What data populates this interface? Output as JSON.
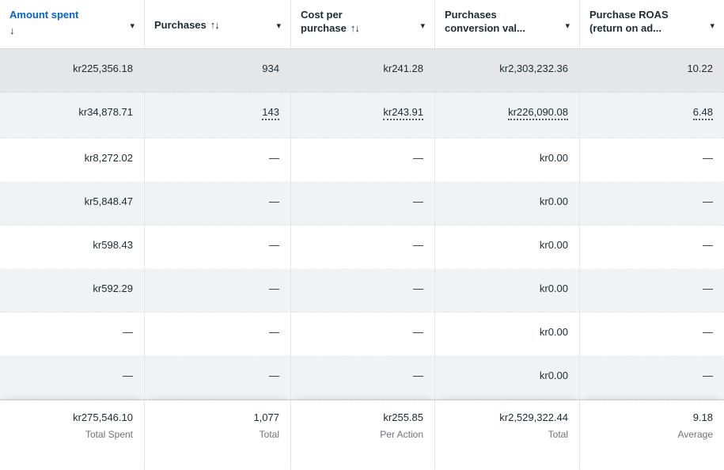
{
  "icons": {
    "caret_down": "▾",
    "sort_both": "↑↓",
    "sort_desc": "↓"
  },
  "colors": {
    "sorted_column_link": "#0064d1",
    "text_dark": "#1c2b33",
    "row_selected_bg": "#e4e6e8",
    "row_shaded_bg": "#f0f3f5",
    "footer_label_gray": "#6e737a"
  },
  "table": {
    "columns": [
      {
        "label": "Amount spent",
        "sorted": "descending"
      },
      {
        "label": "Purchases",
        "sortable": true
      },
      {
        "label": "Cost per purchase",
        "sortable": true
      },
      {
        "label": "Purchases conversion val..."
      },
      {
        "label": "Purchase ROAS (return on ad..."
      }
    ],
    "rows": [
      {
        "amount_spent": "kr225,356.18",
        "purchases": "934",
        "cost_per_purchase": "kr241.28",
        "conversion_value": "kr2,303,232.36",
        "roas": "10.22"
      },
      {
        "amount_spent": "kr34,878.71",
        "purchases": "143",
        "cost_per_purchase": "kr243.91",
        "conversion_value": "kr226,090.08",
        "roas": "6.48"
      },
      {
        "amount_spent": "kr8,272.02",
        "purchases": "—",
        "cost_per_purchase": "—",
        "conversion_value": "kr0.00",
        "roas": "—"
      },
      {
        "amount_spent": "kr5,848.47",
        "purchases": "—",
        "cost_per_purchase": "—",
        "conversion_value": "kr0.00",
        "roas": "—"
      },
      {
        "amount_spent": "kr598.43",
        "purchases": "—",
        "cost_per_purchase": "—",
        "conversion_value": "kr0.00",
        "roas": "—"
      },
      {
        "amount_spent": "kr592.29",
        "purchases": "—",
        "cost_per_purchase": "—",
        "conversion_value": "kr0.00",
        "roas": "—"
      },
      {
        "amount_spent": "—",
        "purchases": "—",
        "cost_per_purchase": "—",
        "conversion_value": "kr0.00",
        "roas": "—"
      },
      {
        "amount_spent": "—",
        "purchases": "—",
        "cost_per_purchase": "—",
        "conversion_value": "kr0.00",
        "roas": "—"
      }
    ],
    "footer": {
      "amount_spent": {
        "value": "kr275,546.10",
        "label": "Total Spent"
      },
      "purchases": {
        "value": "1,077",
        "label": "Total"
      },
      "cost_per_purchase": {
        "value": "kr255.85",
        "label": "Per Action"
      },
      "conversion_value": {
        "value": "kr2,529,322.44",
        "label": "Total"
      },
      "roas": {
        "value": "9.18",
        "label": "Average"
      }
    }
  }
}
